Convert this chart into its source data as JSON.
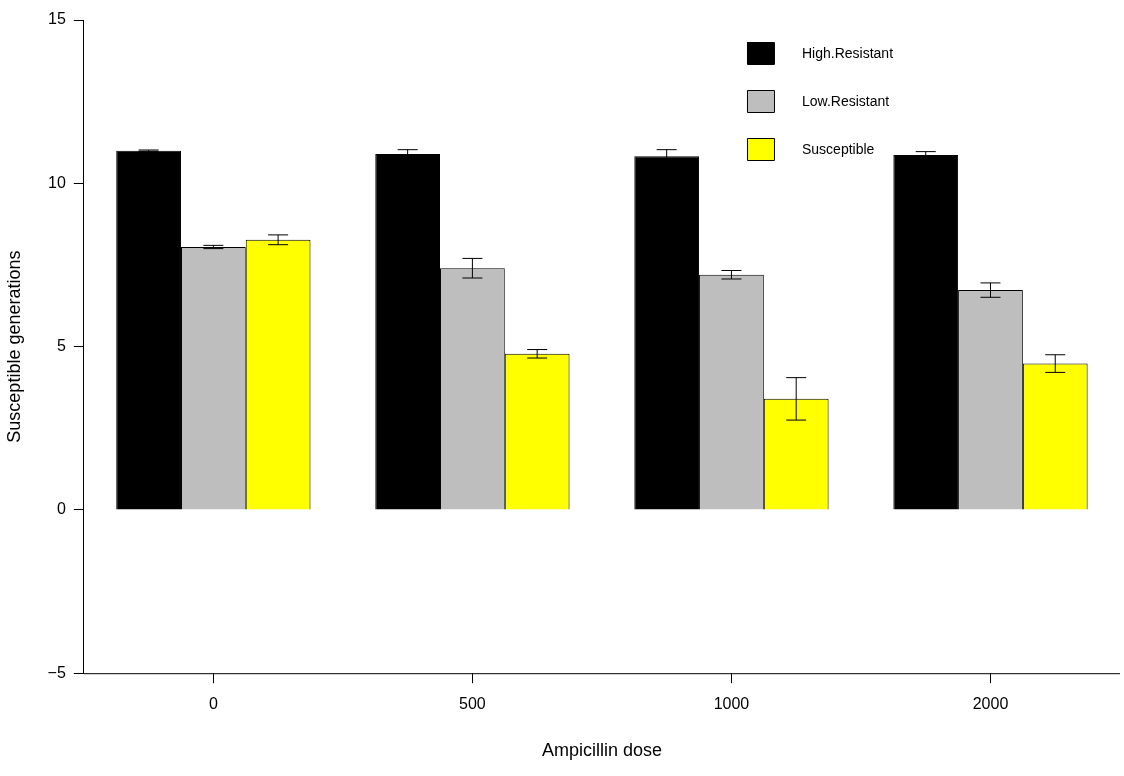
{
  "chart_data": {
    "type": "bar",
    "xlabel": "Ampicillin dose",
    "ylabel": "Susceptible generations",
    "categories": [
      "0",
      "500",
      "1000",
      "2000"
    ],
    "ylim": [
      -5,
      15
    ],
    "yticks": [
      -5,
      0,
      5,
      10,
      15
    ],
    "grid": false,
    "legend": "top right",
    "series": [
      {
        "name": "High.Resistant",
        "color": "#000000",
        "values": [
          11.0,
          10.9,
          10.83,
          10.87
        ],
        "errors": [
          0.02,
          0.13,
          0.2,
          0.1
        ]
      },
      {
        "name": "Low.Resistant",
        "color": "#bebebe",
        "values": [
          8.05,
          7.4,
          7.2,
          6.73
        ],
        "errors": [
          0.05,
          0.3,
          0.13,
          0.22
        ]
      },
      {
        "name": "Susceptible",
        "color": "#ffff00",
        "values": [
          8.27,
          4.78,
          3.4,
          4.48
        ],
        "errors": [
          0.15,
          0.13,
          0.65,
          0.27
        ]
      }
    ]
  }
}
